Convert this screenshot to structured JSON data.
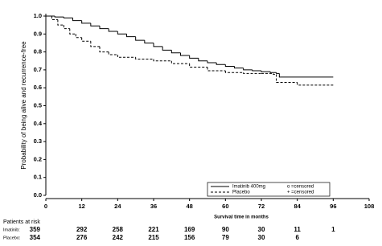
{
  "chart_data": {
    "type": "step",
    "xlabel": "Survival time in months",
    "ylabel": "Probability of being alive and recurrence-free",
    "xlim": [
      0,
      108
    ],
    "ylim": [
      0,
      1
    ],
    "xticks": [
      0,
      12,
      24,
      36,
      48,
      60,
      72,
      84,
      96,
      108
    ],
    "yticks": [
      {
        "value": 0,
        "label": "0.0"
      },
      0.1,
      0.2,
      0.3,
      0.4,
      0.5,
      0.6,
      0.7,
      0.8,
      0.9,
      {
        "value": 1,
        "label": "1.0"
      }
    ],
    "series": [
      {
        "name": "Imatinib 400mg",
        "color": "#000000",
        "dash": "none",
        "censor_label": "o =censored",
        "x": [
          0,
          3,
          6,
          9,
          12,
          15,
          18,
          21,
          24,
          27,
          30,
          33,
          36,
          39,
          42,
          45,
          48,
          51,
          54,
          57,
          60,
          63,
          66,
          69,
          72,
          75,
          77,
          78,
          96
        ],
        "values": [
          1.0,
          0.995,
          0.99,
          0.975,
          0.96,
          0.945,
          0.93,
          0.915,
          0.9,
          0.885,
          0.865,
          0.85,
          0.83,
          0.81,
          0.795,
          0.78,
          0.765,
          0.75,
          0.74,
          0.73,
          0.72,
          0.71,
          0.7,
          0.695,
          0.69,
          0.685,
          0.68,
          0.66,
          0.66
        ]
      },
      {
        "name": "Placebo",
        "color": "#000000",
        "dash": "3,2",
        "censor_label": "+ =censored",
        "x": [
          0,
          2,
          4,
          6,
          8,
          10,
          12,
          15,
          18,
          21,
          24,
          30,
          36,
          42,
          48,
          54,
          60,
          66,
          72,
          76,
          77,
          84,
          96
        ],
        "values": [
          1.0,
          0.98,
          0.95,
          0.93,
          0.9,
          0.88,
          0.86,
          0.83,
          0.8,
          0.785,
          0.77,
          0.76,
          0.75,
          0.735,
          0.715,
          0.695,
          0.685,
          0.68,
          0.68,
          0.675,
          0.63,
          0.615,
          0.615
        ]
      }
    ],
    "risk_table": {
      "title": "Patients at risk",
      "rows": [
        {
          "label": "Imatinib:",
          "counts": [
            359,
            292,
            258,
            221,
            169,
            90,
            30,
            11,
            1
          ]
        },
        {
          "label": "Placebo:",
          "counts": [
            354,
            276,
            242,
            215,
            156,
            79,
            30,
            6
          ]
        }
      ]
    }
  }
}
